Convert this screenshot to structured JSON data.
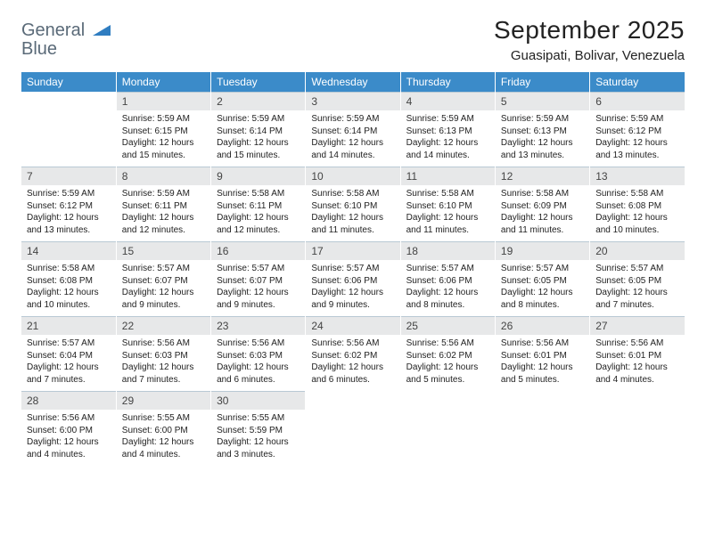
{
  "logo": {
    "word1": "General",
    "word2": "Blue"
  },
  "header": {
    "title": "September 2025",
    "location": "Guasipati, Bolivar, Venezuela"
  },
  "styling": {
    "header_bg": "#3b8bc9",
    "header_fg": "#ffffff",
    "daynum_bg": "#e7e8e9",
    "daynum_border": "#b9c9d4",
    "body_fg": "#222222",
    "logo_gray": "#5a6a78",
    "logo_blue": "#2f7dc1",
    "title_fontsize": 28,
    "location_fontsize": 15,
    "dayhead_fontsize": 12,
    "cell_fontsize": 10,
    "columns": 7,
    "weeks": 5
  },
  "dayNames": [
    "Sunday",
    "Monday",
    "Tuesday",
    "Wednesday",
    "Thursday",
    "Friday",
    "Saturday"
  ],
  "startOffset": 1,
  "days": [
    {
      "n": 1,
      "sunrise": "5:59 AM",
      "sunset": "6:15 PM",
      "daylight": "12 hours and 15 minutes."
    },
    {
      "n": 2,
      "sunrise": "5:59 AM",
      "sunset": "6:14 PM",
      "daylight": "12 hours and 15 minutes."
    },
    {
      "n": 3,
      "sunrise": "5:59 AM",
      "sunset": "6:14 PM",
      "daylight": "12 hours and 14 minutes."
    },
    {
      "n": 4,
      "sunrise": "5:59 AM",
      "sunset": "6:13 PM",
      "daylight": "12 hours and 14 minutes."
    },
    {
      "n": 5,
      "sunrise": "5:59 AM",
      "sunset": "6:13 PM",
      "daylight": "12 hours and 13 minutes."
    },
    {
      "n": 6,
      "sunrise": "5:59 AM",
      "sunset": "6:12 PM",
      "daylight": "12 hours and 13 minutes."
    },
    {
      "n": 7,
      "sunrise": "5:59 AM",
      "sunset": "6:12 PM",
      "daylight": "12 hours and 13 minutes."
    },
    {
      "n": 8,
      "sunrise": "5:59 AM",
      "sunset": "6:11 PM",
      "daylight": "12 hours and 12 minutes."
    },
    {
      "n": 9,
      "sunrise": "5:58 AM",
      "sunset": "6:11 PM",
      "daylight": "12 hours and 12 minutes."
    },
    {
      "n": 10,
      "sunrise": "5:58 AM",
      "sunset": "6:10 PM",
      "daylight": "12 hours and 11 minutes."
    },
    {
      "n": 11,
      "sunrise": "5:58 AM",
      "sunset": "6:10 PM",
      "daylight": "12 hours and 11 minutes."
    },
    {
      "n": 12,
      "sunrise": "5:58 AM",
      "sunset": "6:09 PM",
      "daylight": "12 hours and 11 minutes."
    },
    {
      "n": 13,
      "sunrise": "5:58 AM",
      "sunset": "6:08 PM",
      "daylight": "12 hours and 10 minutes."
    },
    {
      "n": 14,
      "sunrise": "5:58 AM",
      "sunset": "6:08 PM",
      "daylight": "12 hours and 10 minutes."
    },
    {
      "n": 15,
      "sunrise": "5:57 AM",
      "sunset": "6:07 PM",
      "daylight": "12 hours and 9 minutes."
    },
    {
      "n": 16,
      "sunrise": "5:57 AM",
      "sunset": "6:07 PM",
      "daylight": "12 hours and 9 minutes."
    },
    {
      "n": 17,
      "sunrise": "5:57 AM",
      "sunset": "6:06 PM",
      "daylight": "12 hours and 9 minutes."
    },
    {
      "n": 18,
      "sunrise": "5:57 AM",
      "sunset": "6:06 PM",
      "daylight": "12 hours and 8 minutes."
    },
    {
      "n": 19,
      "sunrise": "5:57 AM",
      "sunset": "6:05 PM",
      "daylight": "12 hours and 8 minutes."
    },
    {
      "n": 20,
      "sunrise": "5:57 AM",
      "sunset": "6:05 PM",
      "daylight": "12 hours and 7 minutes."
    },
    {
      "n": 21,
      "sunrise": "5:57 AM",
      "sunset": "6:04 PM",
      "daylight": "12 hours and 7 minutes."
    },
    {
      "n": 22,
      "sunrise": "5:56 AM",
      "sunset": "6:03 PM",
      "daylight": "12 hours and 7 minutes."
    },
    {
      "n": 23,
      "sunrise": "5:56 AM",
      "sunset": "6:03 PM",
      "daylight": "12 hours and 6 minutes."
    },
    {
      "n": 24,
      "sunrise": "5:56 AM",
      "sunset": "6:02 PM",
      "daylight": "12 hours and 6 minutes."
    },
    {
      "n": 25,
      "sunrise": "5:56 AM",
      "sunset": "6:02 PM",
      "daylight": "12 hours and 5 minutes."
    },
    {
      "n": 26,
      "sunrise": "5:56 AM",
      "sunset": "6:01 PM",
      "daylight": "12 hours and 5 minutes."
    },
    {
      "n": 27,
      "sunrise": "5:56 AM",
      "sunset": "6:01 PM",
      "daylight": "12 hours and 4 minutes."
    },
    {
      "n": 28,
      "sunrise": "5:56 AM",
      "sunset": "6:00 PM",
      "daylight": "12 hours and 4 minutes."
    },
    {
      "n": 29,
      "sunrise": "5:55 AM",
      "sunset": "6:00 PM",
      "daylight": "12 hours and 4 minutes."
    },
    {
      "n": 30,
      "sunrise": "5:55 AM",
      "sunset": "5:59 PM",
      "daylight": "12 hours and 3 minutes."
    }
  ],
  "labels": {
    "sunrise": "Sunrise:",
    "sunset": "Sunset:",
    "daylight": "Daylight:"
  }
}
